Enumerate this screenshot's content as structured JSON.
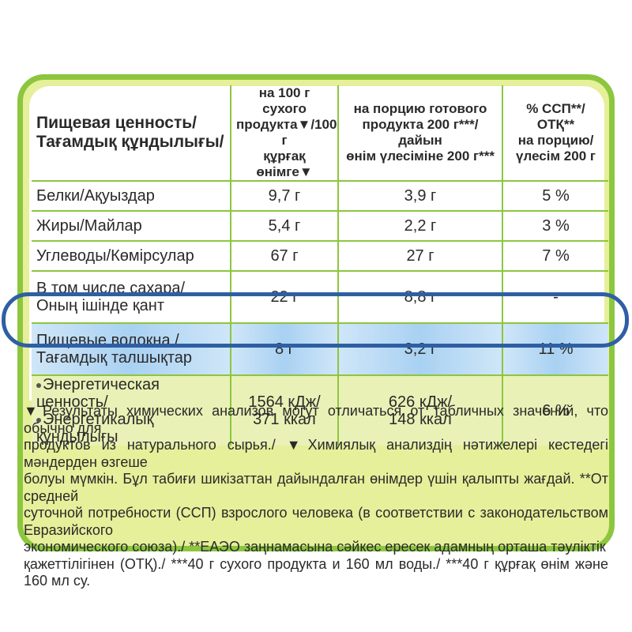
{
  "header": {
    "col1": [
      "Пищевая ценность/",
      "Тағамдық құндылығы/"
    ],
    "col2": [
      "на 100 г сухого",
      "продукта▼/100 г",
      "құрғақ өнімге▼"
    ],
    "col3": [
      "на порцию готового",
      "продукта 200 г***/дайын",
      "өнім үлесіміне 200 г***"
    ],
    "col4": [
      "% ССП**/ОТҚ**",
      "на порцию/",
      "үлесім 200 г"
    ]
  },
  "rows": [
    {
      "name": [
        "Белки/Ақуыздар"
      ],
      "per100": "9,7 г",
      "portion": "3,9 г",
      "pct": "5 %"
    },
    {
      "name": [
        "Жиры/Майлар"
      ],
      "per100": "5,4 г",
      "portion": "2,2 г",
      "pct": "3 %"
    },
    {
      "name": [
        "Углеводы/Көмірсулар"
      ],
      "per100": "67 г",
      "portion": "27 г",
      "pct": "7 %"
    },
    {
      "name": [
        "В том числе сахара/",
        "Оның ішінде қант"
      ],
      "per100": "22 г",
      "portion": "8,8 г",
      "pct": "-"
    },
    {
      "name": [
        "Пищевые волокна /",
        "Тағамдық талшықтар"
      ],
      "per100": "8 г",
      "portion": "3,2 г",
      "pct": "11 %"
    },
    {
      "name": [
        "Энергетическая ценность/",
        "Энергетикалық құндылығы"
      ],
      "per100": [
        "1564 кДж/",
        "371 ккал"
      ],
      "portion": [
        "626 кДж/",
        "148 ккал"
      ],
      "pct": "6 %"
    }
  ],
  "footnote": [
    "▼Результаты химических анализов могут отличаться от табличных значений, что обычно для",
    "продуктов из натурального сырья./ ▼Химиялық анализдің нәтижелері кестедегі мәндерден өзгеше",
    "болуы мүмкін. Бұл табиғи шикізаттан дайындалған өнімдер үшін қалыпты жағдай. **От средней",
    "суточной потребности (ССП) взрослого человека (в соответствии с законодательством Евразийского",
    "экономического союза)./ **ЕАЭО заңнамасына сәйкес ересек адамның орташа тәуліктік",
    "қажеттілігінен (ОТҚ)./ ***40 г сухого продукта и 160 мл воды./ ***40 г құрғақ өнім және 160 мл су."
  ],
  "colors": {
    "frame": "#8cc63f",
    "panel": "#e6ef9a",
    "highlight_ring": "#2f5fa3",
    "highlight_fill": "#a9d1f2"
  }
}
